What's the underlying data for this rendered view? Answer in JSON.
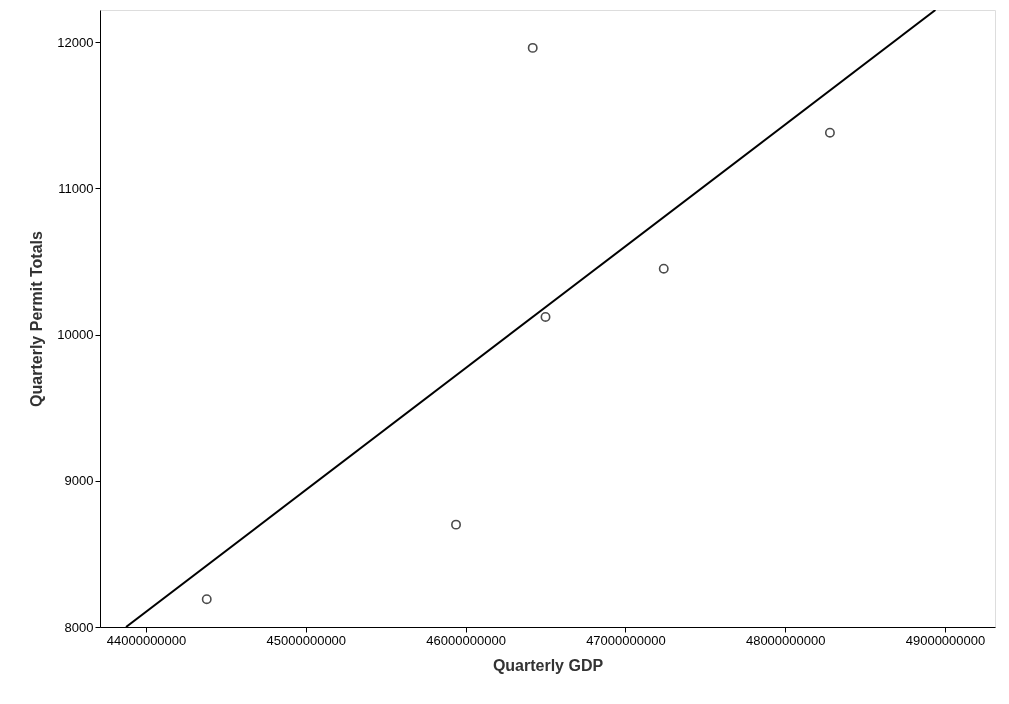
{
  "chart_data": {
    "type": "scatter",
    "xlabel": "Quarterly GDP",
    "ylabel": "Quarterly Permit Totals",
    "x": [
      44380000000,
      45940000000,
      46420000000,
      46500000000,
      47240000000,
      48280000000
    ],
    "series": [
      {
        "color": "#000000",
        "marker": "circle",
        "values": [
          8190,
          8700,
          11960,
          10120,
          10450,
          11380
        ]
      },
      {
        "type": "line",
        "color": "#000000",
        "line_style": "solid",
        "marker": "none",
        "x": [
          43875000000,
          48940000000
        ],
        "values": [
          8000,
          12219
        ]
      }
    ],
    "xlim": [
      43712000000,
      49313000000
    ],
    "xticks": [
      44000000000,
      45000000000,
      46000000000,
      47000000000,
      48000000000,
      49000000000
    ],
    "ylim": [
      8000,
      12219
    ],
    "yticks": [
      8000,
      9000,
      10000,
      11000,
      12000
    ],
    "grid": false
  }
}
